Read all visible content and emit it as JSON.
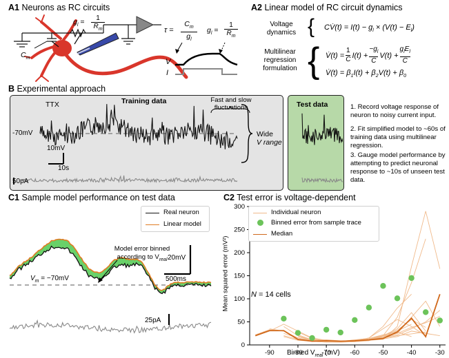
{
  "panelA1": {
    "tag": "A1",
    "title": "Neurons as RC circuits",
    "gl_label": "g",
    "gl_sub": "l",
    "gl_eq": "=",
    "num": "1",
    "rm": "R",
    "rm_sub": "m",
    "cm": "C",
    "cm_sub": "m",
    "tau": "τ =",
    "tau_num_c": "C",
    "tau_num_sub": "m",
    "tau_den": "g",
    "tau_den_sub": "l",
    "gl2": "g",
    "gl2_sub": "l",
    "gl2_eq": "=",
    "num2": "1",
    "rm2": "R",
    "rm2_sub": "m",
    "v_label": "V",
    "i_label": "I"
  },
  "panelA2": {
    "tag": "A2",
    "title": "Linear model of RC circuit dynamics",
    "voltage_dyn_1": "Voltage",
    "voltage_dyn_2": "dynamics",
    "eq1": "CV̇(t) = I(t) − g",
    "eq1_sub": "l",
    "eq1b": " × (V(t) − E",
    "eq1b_sub": "l",
    "eq1c": ")",
    "mlr_1": "Multilinear",
    "mlr_2": "regression",
    "mlr_3": "formulation",
    "eq2_lhs": "V̇(t) =",
    "eq2_f1n": "1",
    "eq2_f1d": "C",
    "eq2_t1": "I(t) +",
    "eq2_f2n": "−g",
    "eq2_f2n_sub": "l",
    "eq2_f2d": "C",
    "eq2_t2": "V(t) +",
    "eq2_f3n": "g",
    "eq2_f3n_sub": "l",
    "eq2_f3n_b": "E",
    "eq2_f3n_sub2": "l",
    "eq2_f3d": "C",
    "eq3": "V̇(t) = β",
    "eq3_s1": "1",
    "eq3_b": "I(t) + β",
    "eq3_s2": "2",
    "eq3_c": "V(t) + β",
    "eq3_s3": "0"
  },
  "panelB": {
    "tag": "B",
    "title": "Experimental approach",
    "ttx": "TTX",
    "training": "Training data",
    "fast_slow_1": "Fast and slow",
    "fast_slow_2": "fluctuations",
    "v70": "-70mV",
    "scale_mv": "10mV",
    "scale_s": "10s",
    "scale_pa": "50pA",
    "wide": "Wide",
    "vrange": "V range",
    "test": "Test data",
    "step1": "1. Record voltage response of neuron to noisy current input.",
    "step2": "2. Fit simplified model to ~60s of training data using multilinear regression.",
    "step3": "3. Gauge model performance by attempting to predict neuronal response to ~10s of unseen test data."
  },
  "panelC1": {
    "tag": "C1",
    "title": "Sample model performance on test data",
    "legend_real": "Real neuron",
    "legend_linear": "Linear model",
    "annot_1": "Model error binned",
    "annot_2": "according to V",
    "annot_sub": "real",
    "vm": "V",
    "vm_sub": "m",
    "vm_val": " = −70mV",
    "scale_mv": "20mV",
    "scale_ms": "500ms",
    "scale_pa": "25pA",
    "colors": {
      "real": "#111111",
      "linear": "#e07b22",
      "fill": "#4fc94f"
    }
  },
  "panelC2": {
    "tag": "C2",
    "title": "Test error is voltage-dependent",
    "n_label": "N",
    "n_text": " = 14 cells",
    "legend_indiv": "Individual neuron",
    "legend_binned": "Binned error from sample trace",
    "legend_median": "Median",
    "colors": {
      "median": "#d0681a",
      "indiv": "#f0b98a",
      "binned": "#6cc35a"
    }
  },
  "chart_data": {
    "type": "line",
    "xlabel": "Binned V",
    "xlabel_sub": "real",
    "xlabel_unit": " (mV)",
    "ylabel": "Mean squared error (mV²)",
    "xlim": [
      -97,
      -28
    ],
    "ylim": [
      0,
      300
    ],
    "xticks": [
      -90,
      -80,
      -70,
      -60,
      -50,
      -40,
      -30
    ],
    "yticks": [
      0,
      50,
      100,
      150,
      200,
      250,
      300
    ],
    "series": [
      {
        "name": "Median",
        "x": [
          -95,
          -90,
          -85,
          -80,
          -75,
          -70,
          -65,
          -60,
          -55,
          -50,
          -45,
          -40,
          -35,
          -30
        ],
        "y": [
          20,
          31,
          31,
          12,
          8,
          9,
          8,
          9,
          11,
          14,
          28,
          58,
          18,
          110
        ]
      },
      {
        "name": "Binned error from sample trace",
        "x": [
          -85,
          -80,
          -75,
          -70,
          -65,
          -60,
          -55,
          -50,
          -45,
          -40,
          -35,
          -30
        ],
        "y": [
          57,
          26,
          15,
          33,
          27,
          54,
          81,
          128,
          101,
          145,
          71,
          53
        ]
      }
    ],
    "individual": [
      {
        "x": [
          -95,
          -90,
          -85,
          -80,
          -75,
          -70,
          -65,
          -60,
          -55,
          -50,
          -45,
          -40,
          -35,
          -30
        ],
        "y": [
          22,
          33,
          30,
          15,
          10,
          11,
          9,
          8,
          10,
          12,
          40,
          170,
          290,
          165
        ]
      },
      {
        "x": [
          -90,
          -85,
          -80,
          -75,
          -70,
          -65,
          -60,
          -55,
          -50,
          -45,
          -40,
          -35
        ],
        "y": [
          35,
          30,
          12,
          8,
          7,
          6,
          7,
          9,
          20,
          60,
          135,
          230
        ]
      },
      {
        "x": [
          -90,
          -85,
          -80,
          -75,
          -70,
          -65,
          -60,
          -55,
          -50,
          -45,
          -40
        ],
        "y": [
          30,
          45,
          30,
          15,
          10,
          8,
          9,
          15,
          40,
          80,
          110
        ]
      },
      {
        "x": [
          -85,
          -80,
          -75,
          -70,
          -65,
          -60,
          -55,
          -50,
          -45,
          -40,
          -35
        ],
        "y": [
          40,
          20,
          10,
          9,
          8,
          10,
          15,
          35,
          55,
          40,
          20
        ]
      },
      {
        "x": [
          -85,
          -80,
          -75,
          -70,
          -65,
          -60,
          -55,
          -50,
          -45,
          -40
        ],
        "y": [
          25,
          15,
          8,
          6,
          6,
          8,
          12,
          18,
          30,
          45
        ]
      },
      {
        "x": [
          -80,
          -75,
          -70,
          -65,
          -60,
          -55,
          -50,
          -45,
          -40,
          -35,
          -30
        ],
        "y": [
          18,
          10,
          7,
          6,
          7,
          10,
          18,
          25,
          60,
          95,
          40
        ]
      },
      {
        "x": [
          -80,
          -75,
          -70,
          -65,
          -60,
          -55,
          -50,
          -45,
          -40,
          -35
        ],
        "y": [
          28,
          14,
          9,
          7,
          8,
          12,
          20,
          35,
          70,
          30
        ]
      },
      {
        "x": [
          -75,
          -70,
          -65,
          -60,
          -55,
          -50,
          -45,
          -40,
          -35,
          -30
        ],
        "y": [
          10,
          8,
          7,
          8,
          12,
          16,
          25,
          38,
          48,
          62
        ]
      },
      {
        "x": [
          -80,
          -75,
          -70,
          -65,
          -60,
          -55,
          -50,
          -45,
          -40
        ],
        "y": [
          15,
          9,
          7,
          7,
          9,
          14,
          22,
          28,
          18
        ]
      },
      {
        "x": [
          -75,
          -70,
          -65,
          -60,
          -55,
          -50,
          -45,
          -40,
          -35,
          -30
        ],
        "y": [
          12,
          9,
          8,
          9,
          10,
          13,
          18,
          30,
          25,
          20
        ]
      },
      {
        "x": [
          -85,
          -80,
          -75,
          -70,
          -65,
          -60,
          -55,
          -50,
          -45,
          -40,
          -35
        ],
        "y": [
          20,
          12,
          9,
          8,
          8,
          11,
          14,
          20,
          32,
          55,
          38
        ]
      },
      {
        "x": [
          -75,
          -70,
          -65,
          -60,
          -55,
          -50,
          -45,
          -40,
          -35
        ],
        "y": [
          9,
          7,
          6,
          8,
          11,
          15,
          20,
          24,
          28
        ]
      },
      {
        "x": [
          -80,
          -75,
          -70,
          -65,
          -60,
          -55,
          -50,
          -45,
          -40,
          -35,
          -30
        ],
        "y": [
          22,
          11,
          8,
          8,
          10,
          12,
          16,
          22,
          35,
          50,
          75
        ]
      },
      {
        "x": [
          -85,
          -80,
          -75,
          -70,
          -65,
          -60,
          -55,
          -50,
          -45
        ],
        "y": [
          18,
          10,
          8,
          6,
          7,
          9,
          12,
          20,
          25
        ]
      }
    ]
  }
}
